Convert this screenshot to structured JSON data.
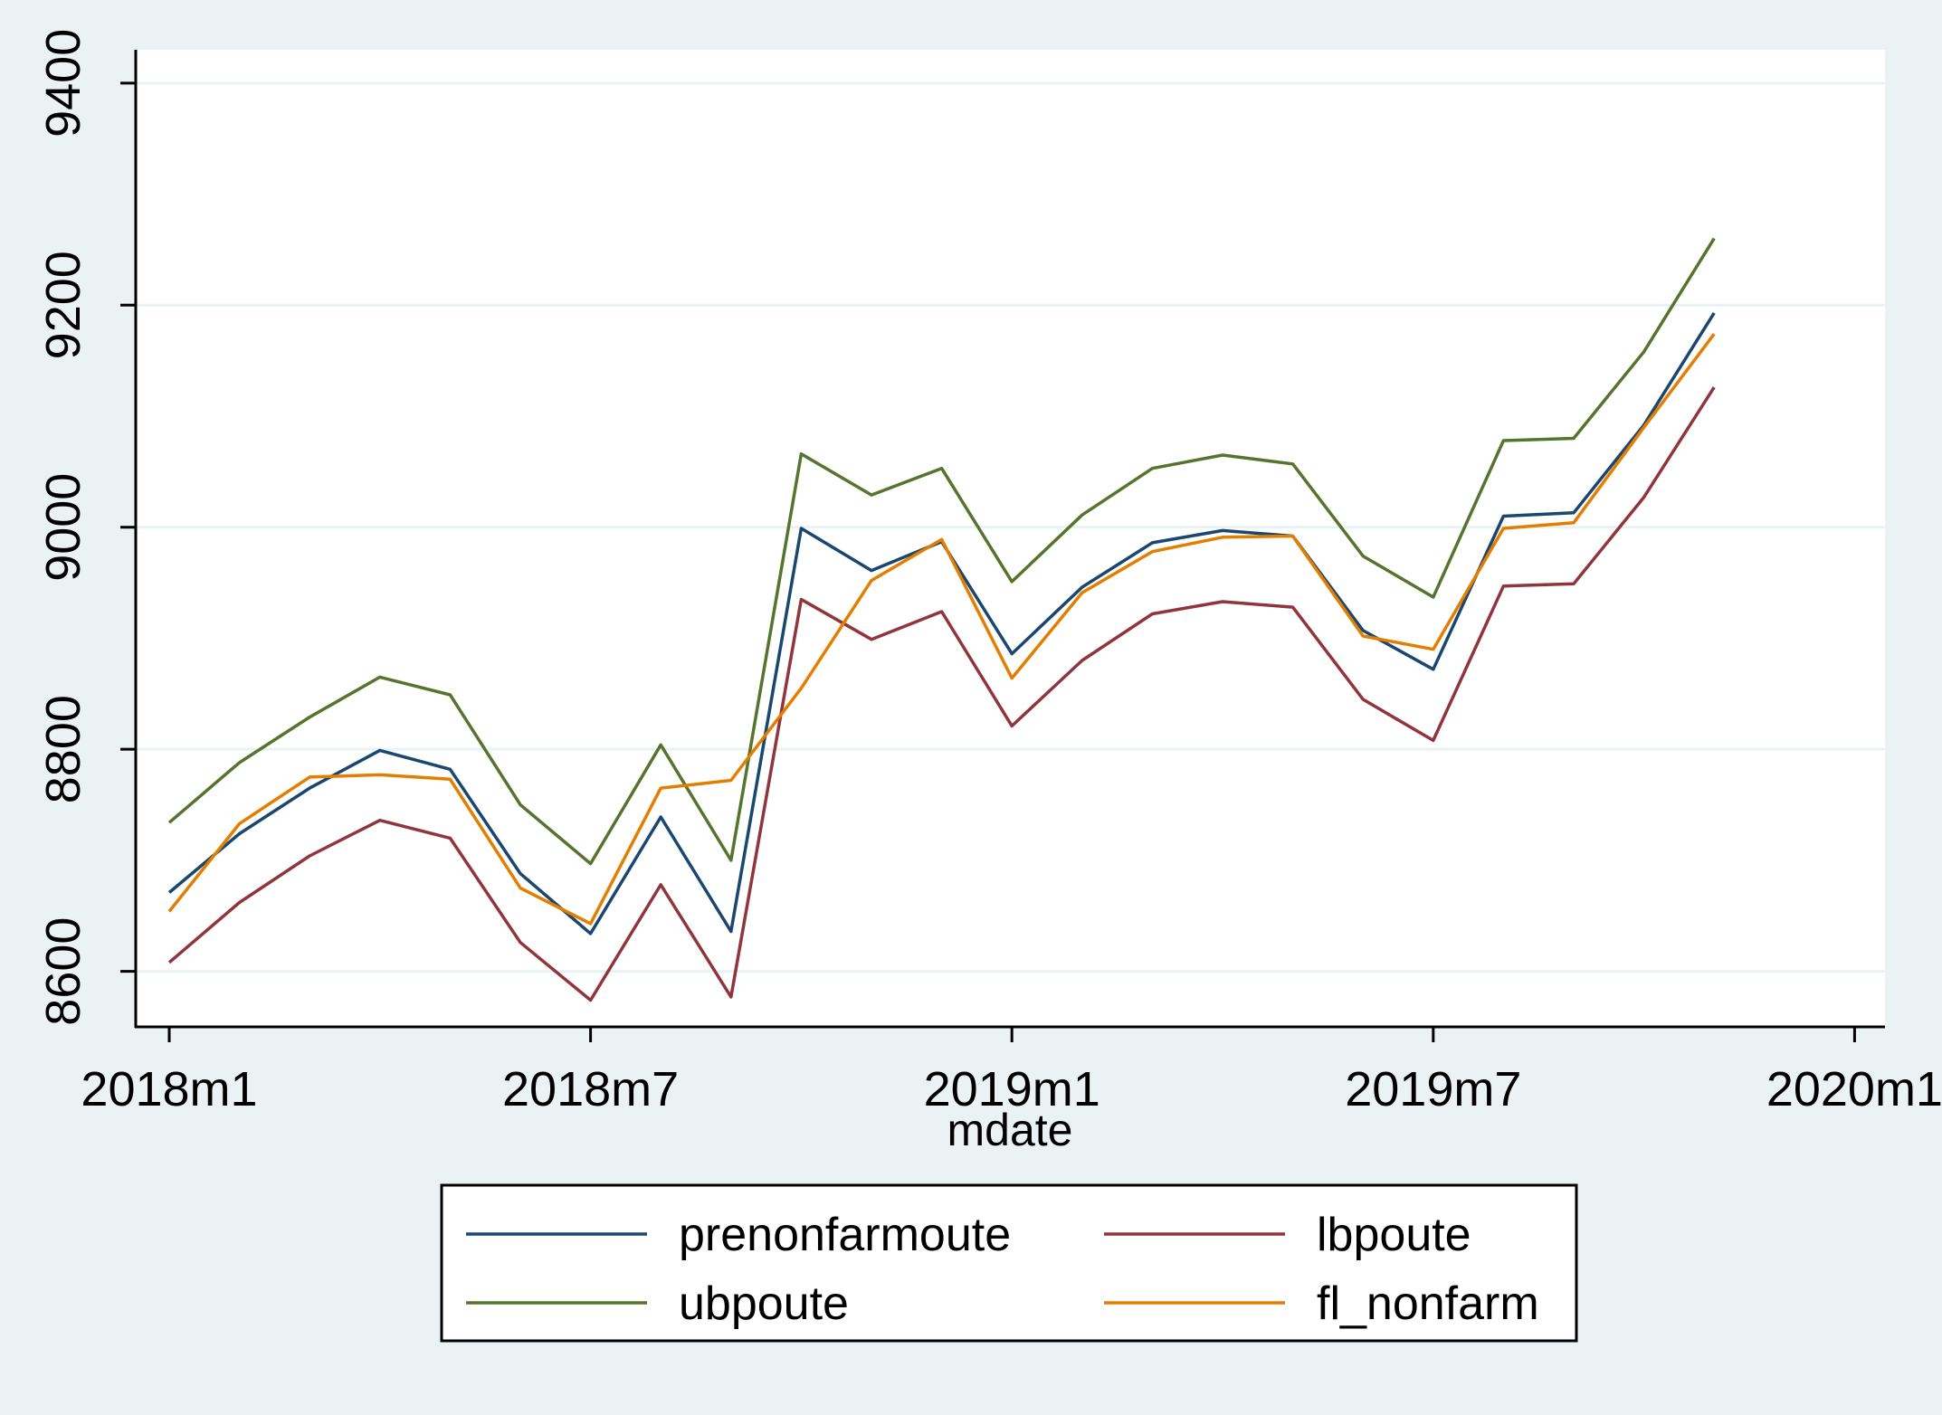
{
  "chart_data": {
    "type": "line",
    "xlabel": "mdate",
    "ylabel": "",
    "x_ticks": [
      "2018m1",
      "2018m7",
      "2019m1",
      "2019m7",
      "2020m1"
    ],
    "y_ticks": [
      8600,
      8800,
      9000,
      9200,
      9400
    ],
    "xlim": [
      "2018m1",
      "2020m1"
    ],
    "ylim": [
      8550,
      9430
    ],
    "grid": "horizontal",
    "legend": {
      "position": "bottom",
      "columns": 2
    },
    "x": [
      "2018m1",
      "2018m2",
      "2018m3",
      "2018m4",
      "2018m5",
      "2018m6",
      "2018m7",
      "2018m8",
      "2018m9",
      "2018m10",
      "2018m11",
      "2018m12",
      "2019m1",
      "2019m2",
      "2019m3",
      "2019m4",
      "2019m5",
      "2019m6",
      "2019m7",
      "2019m8",
      "2019m9",
      "2019m10",
      "2019m11"
    ],
    "series": [
      {
        "name": "prenonfarmoute",
        "color": "#1a476f",
        "values": [
          8671,
          8724,
          8765,
          8799,
          8782,
          8688,
          8634,
          8739,
          8636,
          8999,
          8961,
          8987,
          8886,
          8946,
          8986,
          8997,
          8992,
          8907,
          8872,
          9010,
          9013,
          9092,
          9193
        ]
      },
      {
        "name": "lbpoute",
        "color": "#90353b",
        "values": [
          8608,
          8662,
          8704,
          8736,
          8720,
          8626,
          8574,
          8678,
          8577,
          8935,
          8899,
          8924,
          8821,
          8880,
          8922,
          8933,
          8928,
          8845,
          8808,
          8947,
          8949,
          9027,
          9126
        ]
      },
      {
        "name": "ubpoute",
        "color": "#55752f",
        "values": [
          8734,
          8788,
          8829,
          8865,
          8849,
          8750,
          8697,
          8804,
          8700,
          9066,
          9029,
          9053,
          8951,
          9011,
          9053,
          9065,
          9057,
          8974,
          8937,
          9078,
          9080,
          9158,
          9260
        ]
      },
      {
        "name": "fl_nonfarm",
        "color": "#e37e00",
        "values": [
          8654,
          8733,
          8775,
          8777,
          8773,
          8675,
          8643,
          8765,
          8772,
          8855,
          8952,
          8989,
          8864,
          8941,
          8978,
          8991,
          8992,
          8902,
          8890,
          8999,
          9004,
          9090,
          9174
        ]
      }
    ]
  }
}
